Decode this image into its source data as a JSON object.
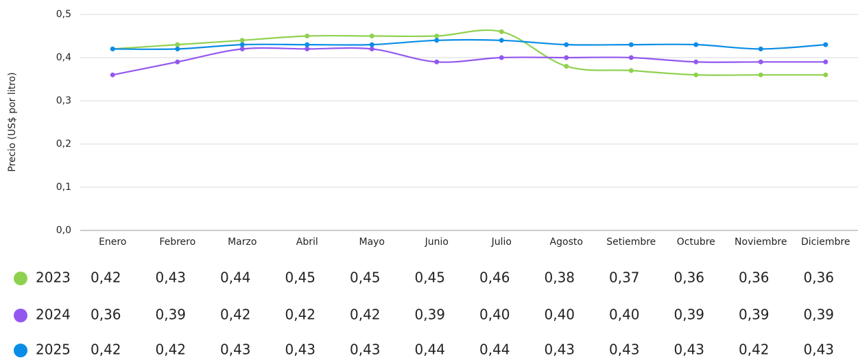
{
  "chart_data": {
    "type": "line",
    "y_label": "Precio (US$ por litro)",
    "categories": [
      "Enero",
      "Febrero",
      "Marzo",
      "Abril",
      "Mayo",
      "Junio",
      "Julio",
      "Agosto",
      "Setiembre",
      "Octubre",
      "Noviembre",
      "Diciembre"
    ],
    "series": [
      {
        "name": "2023",
        "color": "#8fd14f",
        "values": [
          0.42,
          0.43,
          0.44,
          0.45,
          0.45,
          0.45,
          0.46,
          0.38,
          0.37,
          0.36,
          0.36,
          0.36
        ],
        "value_labels": [
          "0,42",
          "0,43",
          "0,44",
          "0,45",
          "0,45",
          "0,45",
          "0,46",
          "0,38",
          "0,37",
          "0,36",
          "0,36",
          "0,36"
        ]
      },
      {
        "name": "2024",
        "color": "#9357f0",
        "values": [
          0.36,
          0.39,
          0.42,
          0.42,
          0.42,
          0.39,
          0.4,
          0.4,
          0.4,
          0.39,
          0.39,
          0.39
        ],
        "value_labels": [
          "0,36",
          "0,39",
          "0,42",
          "0,42",
          "0,42",
          "0,39",
          "0,40",
          "0,40",
          "0,40",
          "0,39",
          "0,39",
          "0,39"
        ]
      },
      {
        "name": "2025",
        "color": "#0a8de6",
        "values": [
          0.42,
          0.42,
          0.43,
          0.43,
          0.43,
          0.44,
          0.44,
          0.43,
          0.43,
          0.43,
          0.42,
          0.43
        ],
        "value_labels": [
          "0,42",
          "0,42",
          "0,43",
          "0,43",
          "0,43",
          "0,44",
          "0,44",
          "0,43",
          "0,43",
          "0,43",
          "0,42",
          "0,43"
        ]
      }
    ],
    "ylim": [
      0,
      0.5
    ],
    "yticks": [
      {
        "value": 0,
        "label": "0,0"
      },
      {
        "value": 0.1,
        "label": "0,1"
      },
      {
        "value": 0.2,
        "label": "0,2"
      },
      {
        "value": 0.3,
        "label": "0,3"
      },
      {
        "value": 0.4,
        "label": "0,4"
      },
      {
        "value": 0.5,
        "label": "0,5"
      }
    ],
    "grid": true
  }
}
